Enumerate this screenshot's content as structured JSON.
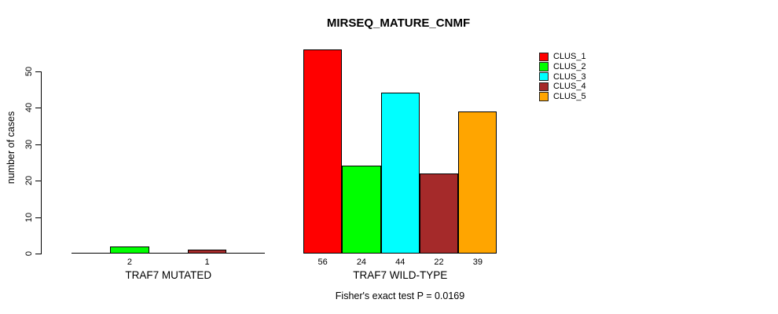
{
  "chart_data": {
    "type": "bar",
    "title": "MIRSEQ_MATURE_CNMF",
    "ylabel": "number of cases",
    "xlabel": "",
    "yticks": [
      0,
      10,
      20,
      30,
      40,
      50
    ],
    "ylim": [
      0,
      58
    ],
    "grid": false,
    "legend_position": "right-outside-top",
    "series": [
      {
        "name": "CLUS_1",
        "color": "#FF0000"
      },
      {
        "name": "CLUS_2",
        "color": "#00FF00"
      },
      {
        "name": "CLUS_3",
        "color": "#00FFFF"
      },
      {
        "name": "CLUS_4",
        "color": "#A52A2A"
      },
      {
        "name": "CLUS_5",
        "color": "#FFA500"
      }
    ],
    "groups": [
      {
        "label": "TRAF7 MUTATED",
        "values": [
          0,
          2,
          0,
          1,
          0
        ],
        "bar_labels": [
          "",
          "2",
          "",
          "1",
          ""
        ]
      },
      {
        "label": "TRAF7 WILD-TYPE",
        "values": [
          56,
          24,
          44,
          22,
          39
        ],
        "bar_labels": [
          "56",
          "24",
          "44",
          "22",
          "39"
        ]
      }
    ],
    "caption": "Fisher's exact test P = 0.0169"
  }
}
